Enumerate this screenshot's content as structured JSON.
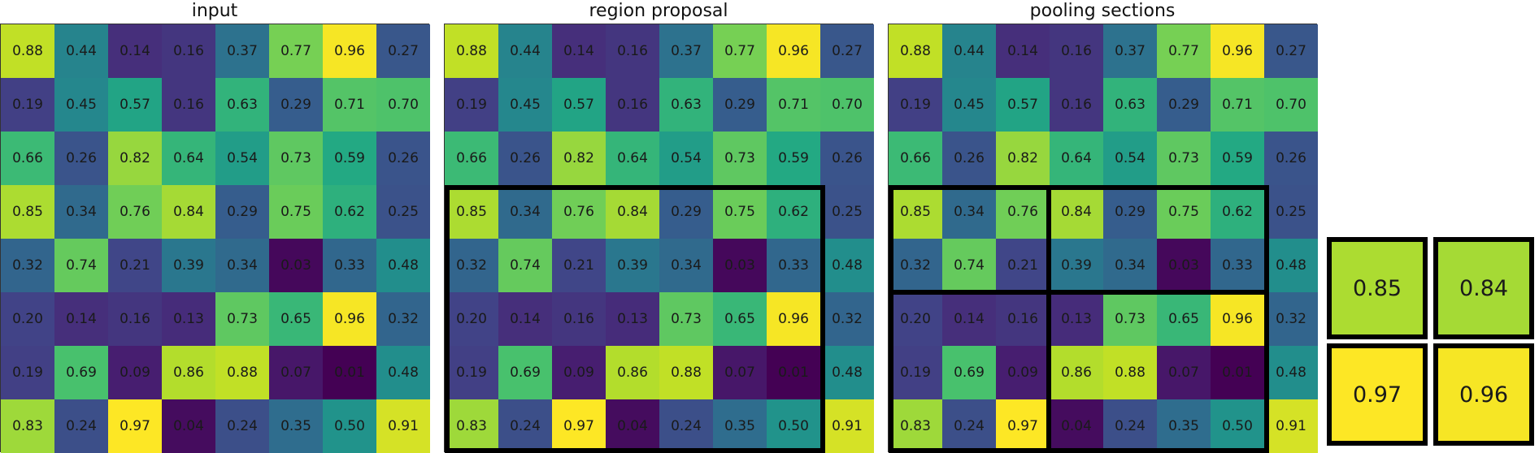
{
  "panels": [
    {
      "title": "input"
    },
    {
      "title": "region proposal"
    },
    {
      "title": "pooling sections"
    }
  ],
  "matrix": [
    [
      "0.88",
      "0.44",
      "0.14",
      "0.16",
      "0.37",
      "0.77",
      "0.96",
      "0.27"
    ],
    [
      "0.19",
      "0.45",
      "0.57",
      "0.16",
      "0.63",
      "0.29",
      "0.71",
      "0.70"
    ],
    [
      "0.66",
      "0.26",
      "0.82",
      "0.64",
      "0.54",
      "0.73",
      "0.59",
      "0.26"
    ],
    [
      "0.85",
      "0.34",
      "0.76",
      "0.84",
      "0.29",
      "0.75",
      "0.62",
      "0.25"
    ],
    [
      "0.32",
      "0.74",
      "0.21",
      "0.39",
      "0.34",
      "0.03",
      "0.33",
      "0.48"
    ],
    [
      "0.20",
      "0.14",
      "0.16",
      "0.13",
      "0.73",
      "0.65",
      "0.96",
      "0.32"
    ],
    [
      "0.19",
      "0.69",
      "0.09",
      "0.86",
      "0.88",
      "0.07",
      "0.01",
      "0.48"
    ],
    [
      "0.83",
      "0.24",
      "0.97",
      "0.04",
      "0.24",
      "0.35",
      "0.50",
      "0.91"
    ]
  ],
  "output": [
    [
      "0.85",
      "0.84"
    ],
    [
      "0.97",
      "0.96"
    ]
  ],
  "colormap": "viridis"
}
